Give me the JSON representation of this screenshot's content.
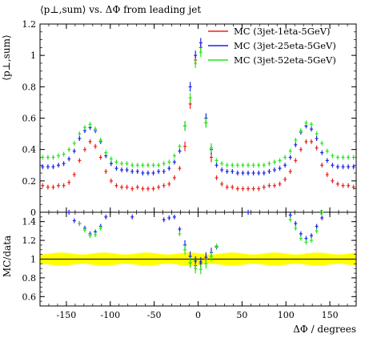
{
  "chart_data": [
    {
      "type": "scatter",
      "title": "⟨p⊥,sum⟩ vs. ΔΦ from leading jet",
      "ylabel": "⟨p⊥,sum⟩",
      "xlabel": "",
      "xlim": [
        -180,
        180
      ],
      "ylim": [
        0,
        1.2
      ],
      "yticks": [
        0.2,
        0.4,
        0.6,
        0.8,
        1.0,
        1.2
      ],
      "ytick_labels": [
        "0.2",
        "0.4",
        "0.6",
        "0.8",
        "1",
        "1.2"
      ],
      "grid": false,
      "legend_position": "top-right",
      "series": [
        {
          "name": "MC (3jet-1eta-5GeV)",
          "color": "#e8231a",
          "x": [
            -177,
            -171,
            -165,
            -159,
            -153,
            -147,
            -141,
            -135,
            -129,
            -123,
            -117,
            -111,
            -105,
            -99,
            -93,
            -87,
            -81,
            -75,
            -69,
            -63,
            -57,
            -51,
            -45,
            -39,
            -33,
            -27,
            -21,
            -15,
            -9,
            -3,
            3,
            9,
            15,
            21,
            27,
            33,
            39,
            45,
            51,
            57,
            63,
            69,
            75,
            81,
            87,
            93,
            99,
            105,
            111,
            117,
            123,
            129,
            135,
            141,
            147,
            153,
            159,
            165,
            171,
            177
          ],
          "y": [
            0.17,
            0.16,
            0.16,
            0.17,
            0.17,
            0.19,
            0.24,
            0.33,
            0.4,
            0.45,
            0.42,
            0.35,
            0.26,
            0.2,
            0.17,
            0.16,
            0.16,
            0.15,
            0.16,
            0.15,
            0.15,
            0.15,
            0.16,
            0.17,
            0.18,
            0.22,
            0.28,
            0.42,
            0.69,
            0.97,
            1.05,
            0.57,
            0.35,
            0.22,
            0.18,
            0.16,
            0.16,
            0.15,
            0.15,
            0.15,
            0.15,
            0.15,
            0.16,
            0.17,
            0.17,
            0.18,
            0.21,
            0.26,
            0.33,
            0.4,
            0.45,
            0.45,
            0.41,
            0.3,
            0.24,
            0.2,
            0.18,
            0.17,
            0.17,
            0.16
          ]
        },
        {
          "name": "MC (3jet-25eta-5GeV)",
          "color": "#1a22e8",
          "x": [
            -177,
            -171,
            -165,
            -159,
            -153,
            -147,
            -141,
            -135,
            -129,
            -123,
            -117,
            -111,
            -105,
            -99,
            -93,
            -87,
            -81,
            -75,
            -69,
            -63,
            -57,
            -51,
            -45,
            -39,
            -33,
            -27,
            -21,
            -15,
            -9,
            -3,
            3,
            9,
            15,
            21,
            27,
            33,
            39,
            45,
            51,
            57,
            63,
            69,
            75,
            81,
            87,
            93,
            99,
            105,
            111,
            117,
            123,
            129,
            135,
            141,
            147,
            153,
            159,
            165,
            171,
            177
          ],
          "y": [
            0.29,
            0.29,
            0.29,
            0.3,
            0.31,
            0.34,
            0.39,
            0.47,
            0.52,
            0.54,
            0.52,
            0.45,
            0.36,
            0.31,
            0.28,
            0.27,
            0.27,
            0.26,
            0.26,
            0.25,
            0.25,
            0.25,
            0.26,
            0.26,
            0.28,
            0.32,
            0.39,
            0.55,
            0.8,
            1.0,
            1.08,
            0.6,
            0.4,
            0.3,
            0.27,
            0.26,
            0.26,
            0.25,
            0.25,
            0.25,
            0.25,
            0.25,
            0.25,
            0.26,
            0.27,
            0.28,
            0.3,
            0.35,
            0.43,
            0.51,
            0.55,
            0.53,
            0.47,
            0.38,
            0.33,
            0.3,
            0.29,
            0.29,
            0.29,
            0.29
          ]
        },
        {
          "name": "MC (3jet-52eta-5GeV)",
          "color": "#22e81a",
          "x": [
            -177,
            -171,
            -165,
            -159,
            -153,
            -147,
            -141,
            -135,
            -129,
            -123,
            -117,
            -111,
            -105,
            -99,
            -93,
            -87,
            -81,
            -75,
            -69,
            -63,
            -57,
            -51,
            -45,
            -39,
            -33,
            -27,
            -21,
            -15,
            -9,
            -3,
            3,
            9,
            15,
            21,
            27,
            33,
            39,
            45,
            51,
            57,
            63,
            69,
            75,
            81,
            87,
            93,
            99,
            105,
            111,
            117,
            123,
            129,
            135,
            141,
            147,
            153,
            159,
            165,
            171,
            177
          ],
          "y": [
            0.35,
            0.35,
            0.35,
            0.36,
            0.37,
            0.4,
            0.44,
            0.5,
            0.54,
            0.56,
            0.53,
            0.46,
            0.38,
            0.34,
            0.32,
            0.31,
            0.31,
            0.3,
            0.3,
            0.3,
            0.3,
            0.3,
            0.3,
            0.31,
            0.32,
            0.36,
            0.42,
            0.55,
            0.73,
            0.95,
            1.02,
            0.57,
            0.41,
            0.33,
            0.31,
            0.3,
            0.3,
            0.3,
            0.3,
            0.3,
            0.3,
            0.3,
            0.3,
            0.31,
            0.32,
            0.33,
            0.35,
            0.39,
            0.46,
            0.52,
            0.57,
            0.56,
            0.5,
            0.44,
            0.39,
            0.36,
            0.35,
            0.35,
            0.35,
            0.35
          ]
        }
      ]
    },
    {
      "type": "scatter",
      "title": "",
      "ylabel": "MC/data",
      "xlabel": "ΔΦ / degrees",
      "xlim": [
        -180,
        180
      ],
      "ylim": [
        0.5,
        1.5
      ],
      "xticks": [
        -150,
        -100,
        -50,
        0,
        50,
        100,
        150
      ],
      "xtick_labels": [
        "-150",
        "-100",
        "-50",
        "0",
        "50",
        "100",
        "150"
      ],
      "yticks": [
        0.6,
        0.8,
        1.0,
        1.2,
        1.4
      ],
      "ytick_labels": [
        "0.6",
        "0.8",
        "1",
        "1.2",
        "1.4"
      ],
      "top_tick_label": "0",
      "reference_line": 1,
      "uncertainty_band": {
        "color": "#ffff00",
        "low": 0.94,
        "high": 1.06
      },
      "grid": false,
      "series": [
        {
          "name": "MC (3jet-1eta-5GeV)",
          "color": "#e8231a",
          "x": [
            -9,
            -3,
            3,
            9
          ],
          "y": [
            0.96,
            0.93,
            0.95,
            1.0
          ]
        },
        {
          "name": "MC (3jet-25eta-5GeV)",
          "color": "#1a22e8",
          "x": [
            -147,
            -141,
            -135,
            -129,
            -123,
            -117,
            -111,
            -105,
            -75,
            -39,
            -33,
            -27,
            -21,
            -15,
            -9,
            -3,
            3,
            9,
            15,
            21,
            57,
            105,
            111,
            117,
            123,
            129,
            135,
            141
          ],
          "y": [
            1.5,
            1.41,
            1.38,
            1.33,
            1.27,
            1.29,
            1.35,
            1.45,
            1.45,
            1.42,
            1.44,
            1.45,
            1.32,
            1.15,
            1.03,
            0.98,
            0.97,
            1.02,
            1.07,
            1.13,
            1.5,
            1.47,
            1.38,
            1.27,
            1.22,
            1.25,
            1.35,
            1.44
          ]
        },
        {
          "name": "MC (3jet-52eta-5GeV)",
          "color": "#22e81a",
          "x": [
            -135,
            -129,
            -123,
            -117,
            -111,
            -21,
            -15,
            -9,
            -3,
            3,
            9,
            15,
            21,
            105,
            111,
            117,
            123,
            129,
            135,
            141
          ],
          "y": [
            1.38,
            1.31,
            1.25,
            1.26,
            1.33,
            1.27,
            1.1,
            0.96,
            0.9,
            0.89,
            0.95,
            1.03,
            1.14,
            1.42,
            1.33,
            1.22,
            1.18,
            1.2,
            1.3,
            1.5
          ]
        }
      ]
    }
  ]
}
